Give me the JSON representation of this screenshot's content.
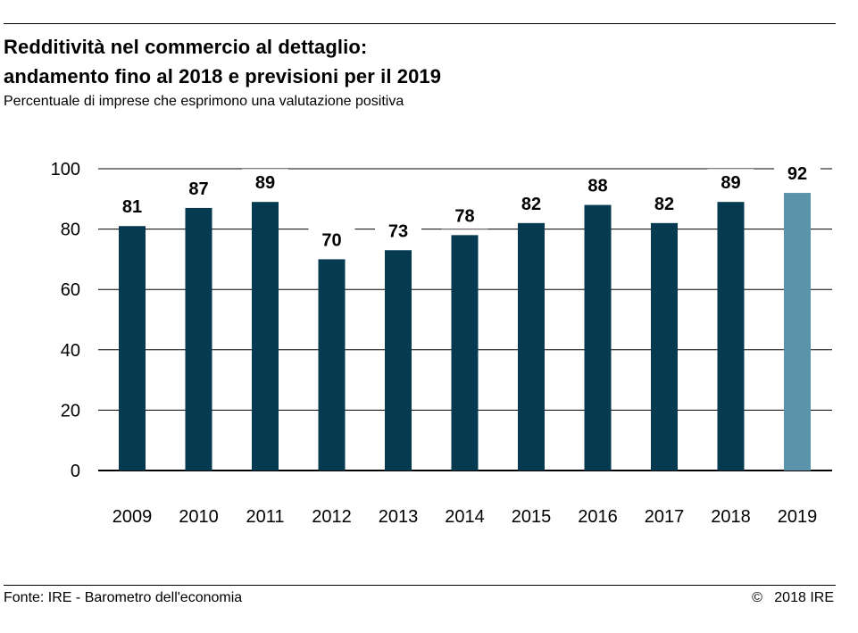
{
  "header": {
    "title_line1": "Redditività nel commercio al dettaglio:",
    "title_line2": "andamento fino al 2018 e previsioni per il 2019",
    "subtitle": "Percentuale di imprese che esprimono una valutazione positiva"
  },
  "footer": {
    "source": "Fonte: IRE - Barometro dell'economia",
    "copyright": "©   2018 IRE"
  },
  "colors": {
    "bar": "#053a50",
    "forecast_bar": "#5b94aa",
    "grid": "#000000"
  },
  "chart_data": {
    "type": "bar",
    "categories": [
      "2009",
      "2010",
      "2011",
      "2012",
      "2013",
      "2014",
      "2015",
      "2016",
      "2017",
      "2018",
      "2019"
    ],
    "values": [
      81,
      87,
      89,
      70,
      73,
      78,
      82,
      88,
      82,
      89,
      92
    ],
    "forecast": [
      "2019"
    ],
    "ylim": [
      0,
      100
    ],
    "yticks": [
      0,
      20,
      40,
      60,
      80,
      100
    ],
    "data_labels": true,
    "grid": true
  }
}
